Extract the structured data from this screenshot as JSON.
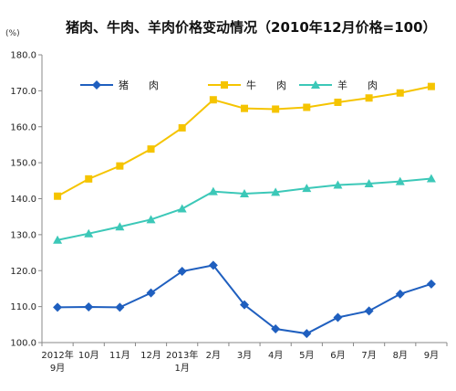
{
  "chart_data": {
    "type": "line",
    "title": "猪肉、牛肉、羊肉价格变动情况（2010年12月价格=100）",
    "unit": "(%)",
    "categories": [
      "2012年\n9月",
      "10月",
      "11月",
      "12月",
      "2013年\n1月",
      "2月",
      "3月",
      "4月",
      "5月",
      "6月",
      "7月",
      "8月",
      "9月"
    ],
    "ylim": [
      100,
      180
    ],
    "yticks": [
      "100.0",
      "110.0",
      "120.0",
      "130.0",
      "140.0",
      "150.0",
      "160.0",
      "170.0",
      "180.0"
    ],
    "grid": false,
    "legend_position": "top-left",
    "series": [
      {
        "name": "猪　　肉",
        "color": "#1f5fbf",
        "marker": "diamond",
        "values": [
          109.8,
          109.9,
          109.8,
          113.8,
          119.8,
          121.5,
          110.5,
          103.8,
          102.5,
          107.0,
          108.8,
          113.5,
          116.3
        ]
      },
      {
        "name": "牛　　肉",
        "color": "#f5c400",
        "marker": "square",
        "values": [
          140.7,
          145.5,
          149.1,
          153.8,
          159.7,
          167.5,
          165.1,
          164.9,
          165.4,
          166.8,
          168.0,
          169.4,
          171.2
        ]
      },
      {
        "name": "羊　　肉",
        "color": "#3cc8b8",
        "marker": "triangle",
        "values": [
          128.5,
          130.3,
          132.2,
          134.2,
          137.2,
          142.0,
          141.4,
          141.8,
          142.9,
          143.8,
          144.2,
          144.8,
          145.6
        ]
      }
    ]
  }
}
